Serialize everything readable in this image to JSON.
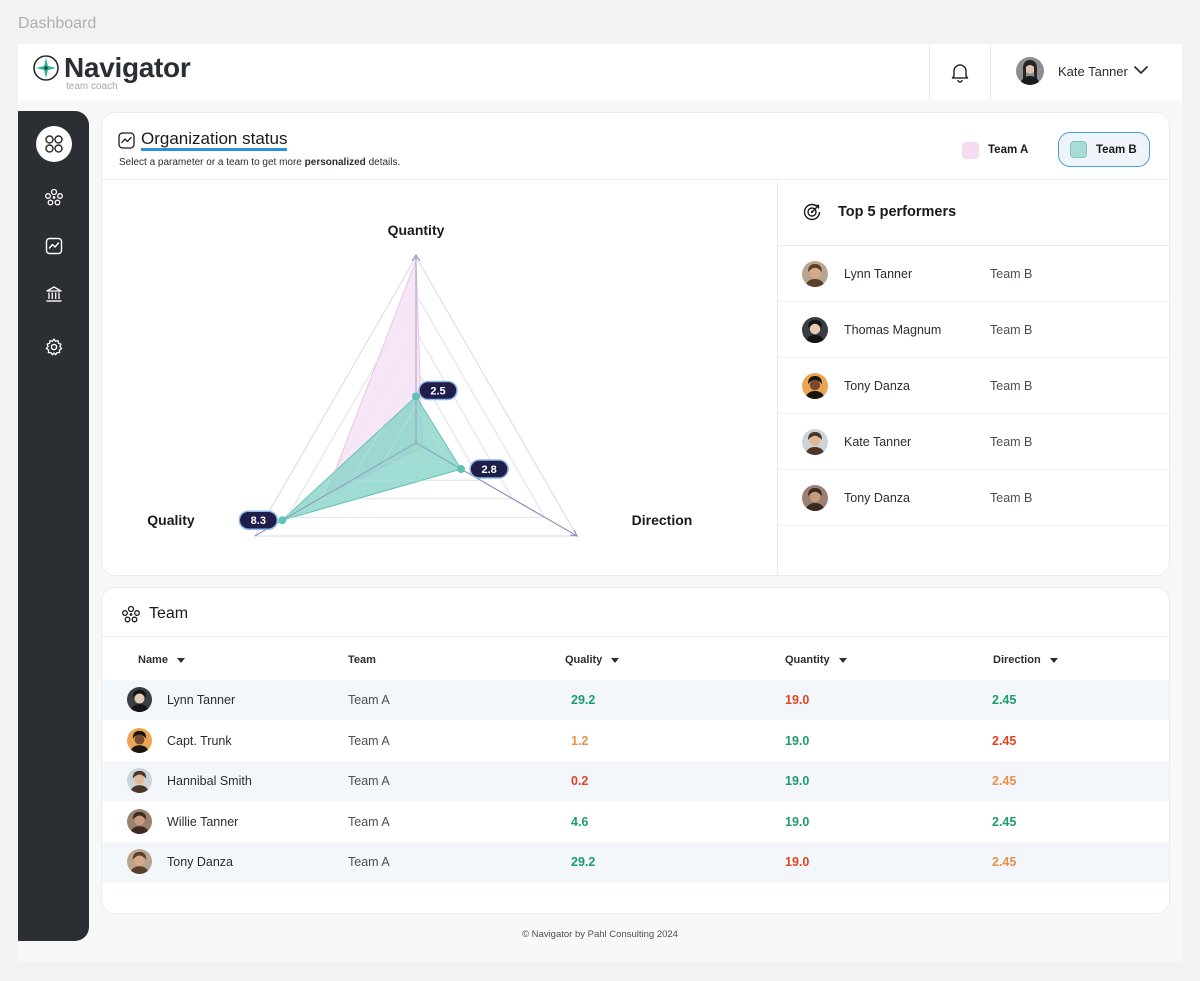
{
  "page_label": "Dashboard",
  "brand": {
    "title": "Navigator",
    "subtitle": "team coach"
  },
  "user": {
    "name": "Kate Tanner"
  },
  "org": {
    "title": "Organization status",
    "subtitle_pre": "Select a parameter or a team to get more ",
    "subtitle_bold": "personalized",
    "subtitle_post": " details.",
    "legend": [
      {
        "label": "Team A",
        "color": "#f4dcf2"
      },
      {
        "label": "Team B",
        "color": "#aadcd7"
      }
    ]
  },
  "chart_data": {
    "type": "radar",
    "axes": [
      "Quantity",
      "Direction",
      "Quality"
    ],
    "range": [
      0,
      10
    ],
    "series": [
      {
        "name": "Team A",
        "values": [
          9.8,
          0.4,
          5.6
        ],
        "color": "#f4dcf2"
      },
      {
        "name": "Team B",
        "values": [
          2.5,
          2.8,
          8.3
        ],
        "color": "#7fd1c6"
      }
    ],
    "labels": [
      "2.5",
      "2.8",
      "8.3"
    ]
  },
  "performers": {
    "title": "Top 5 performers",
    "items": [
      {
        "name": "Lynn Tanner",
        "team": "Team B"
      },
      {
        "name": "Thomas Magnum",
        "team": "Team B"
      },
      {
        "name": "Tony Danza",
        "team": "Team B"
      },
      {
        "name": "Kate Tanner",
        "team": "Team B"
      },
      {
        "name": "Tony Danza",
        "team": "Team B"
      }
    ]
  },
  "team": {
    "title": "Team",
    "columns": [
      "Name",
      "Team",
      "Quality",
      "Quantity",
      "Direction"
    ],
    "rows": [
      {
        "name": "Lynn Tanner",
        "team": "Team A",
        "quality": "29.2",
        "quantity": "19.0",
        "direction": "2.45"
      },
      {
        "name": "Capt. Trunk",
        "team": "Team A",
        "quality": "1.2",
        "quantity": "19.0",
        "direction": "2.45"
      },
      {
        "name": "Hannibal Smith",
        "team": "Team A",
        "quality": "0.2",
        "quantity": "19.0",
        "direction": "2.45"
      },
      {
        "name": "Willie Tanner",
        "team": "Team A",
        "quality": "4.6",
        "quantity": "19.0",
        "direction": "2.45"
      },
      {
        "name": "Tony Danza",
        "team": "Team A",
        "quality": "29.2",
        "quantity": "19.0",
        "direction": "2.45"
      }
    ]
  },
  "status_colors": {
    "good": "#1e9c6e",
    "mid": "#e8914a",
    "bad": "#e0461f"
  },
  "footer": "© Navigator by Pahl Consulting 2024"
}
